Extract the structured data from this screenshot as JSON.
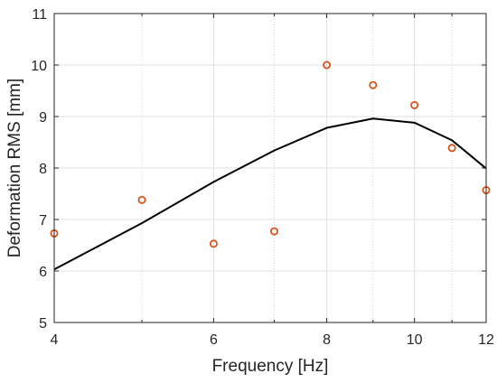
{
  "chart_data": {
    "type": "line",
    "x_scale": "log",
    "grid": true,
    "xlabel": "Frequency [Hz]",
    "ylabel": "Deformation RMS [mm]",
    "xlim": [
      4,
      12
    ],
    "ylim": [
      5,
      11
    ],
    "x_ticks": [
      4,
      6,
      8,
      10,
      12
    ],
    "x_minor_ticks": [
      5,
      7,
      9,
      11
    ],
    "y_ticks": [
      5,
      6,
      7,
      8,
      9,
      10,
      11
    ],
    "series": [
      {
        "type": "line",
        "color": "#000000",
        "x": [
          4,
          5,
          6,
          7,
          8,
          9,
          10,
          11,
          12
        ],
        "y": [
          6.03,
          6.93,
          7.73,
          8.34,
          8.78,
          8.96,
          8.88,
          8.54,
          7.99
        ]
      },
      {
        "type": "scatter",
        "marker": "circle-open",
        "color": "#D95319",
        "x": [
          4,
          5,
          6,
          7,
          8,
          9,
          10,
          11,
          12
        ],
        "y": [
          6.73,
          7.38,
          6.53,
          6.77,
          10.0,
          9.61,
          9.22,
          8.39,
          7.57
        ]
      }
    ]
  }
}
